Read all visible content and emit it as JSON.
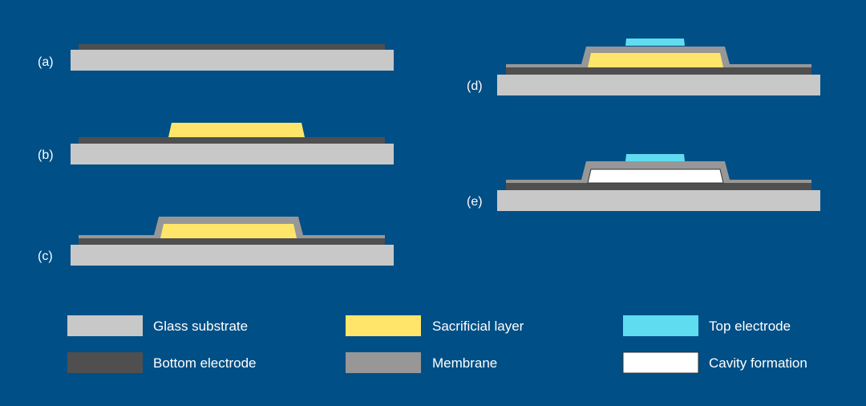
{
  "steps": [
    "(a)",
    "(b)",
    "(c)",
    "(d)",
    "(e)"
  ],
  "legend": {
    "glass": "Glass substrate",
    "bottom": "Bottom electrode",
    "sacrificial": "Sacrificial layer",
    "membrane": "Membrane",
    "top": "Top electrode",
    "cavity": "Cavity formation"
  },
  "colors": {
    "background": "#004f86",
    "glass": "#c8c8c8",
    "bottom": "#4f4f4f",
    "sacrificial": "#ffe66a",
    "membrane": "#979797",
    "top": "#60dcf0",
    "cavity": "#ffffff"
  }
}
